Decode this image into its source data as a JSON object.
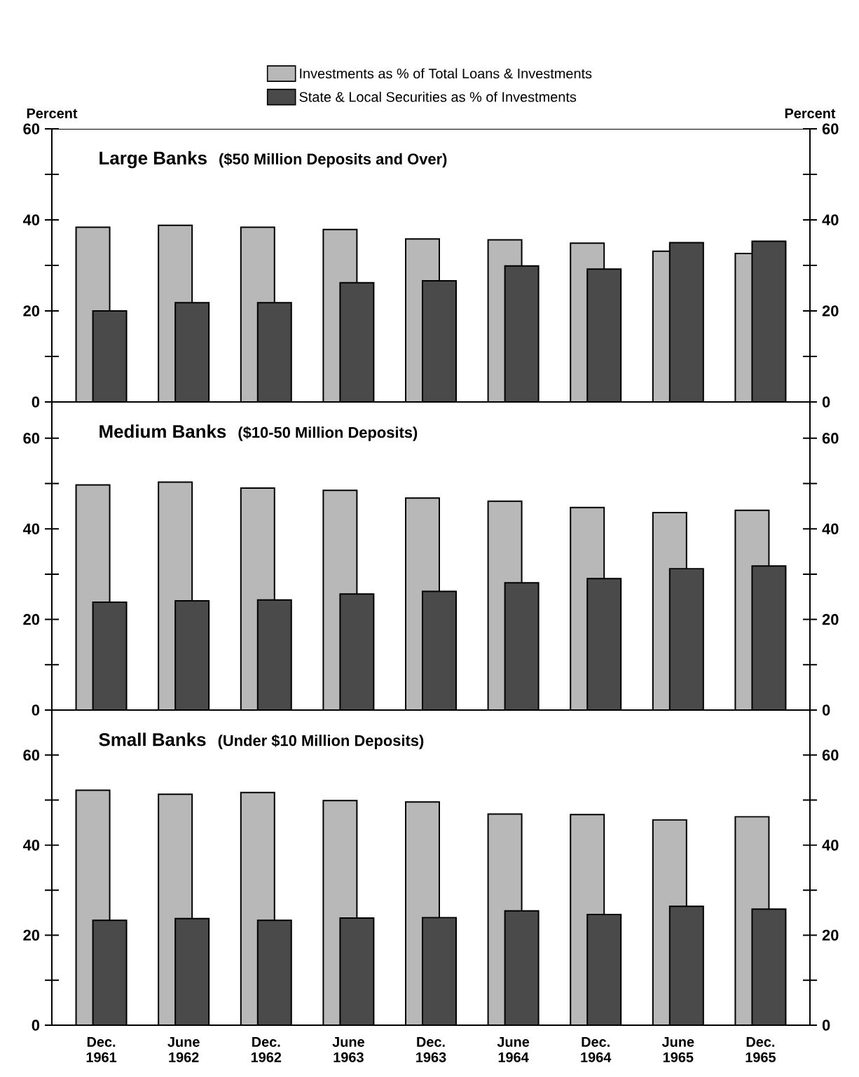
{
  "chart_data": [
    {
      "type": "bar",
      "title": "Large Banks",
      "subtitle": "($50 Million Deposits and Over)",
      "ylabel": "Percent",
      "y2label": "Percent",
      "categories": [
        null,
        null,
        null,
        null,
        null,
        null,
        null,
        null,
        null
      ],
      "series": [
        {
          "name": "Investments as % of Total Loans & Investments",
          "color": "#b8b8b8",
          "values": [
            38.4,
            38.8,
            38.4,
            37.9,
            35.8,
            35.6,
            34.9,
            33.1,
            32.6
          ]
        },
        {
          "name": "State & Local Securities as % of Investments",
          "color": "#4a4a4a",
          "values": [
            20.0,
            21.8,
            21.8,
            26.2,
            26.6,
            29.9,
            29.2,
            35.0,
            35.3
          ]
        }
      ],
      "ylim": [
        0,
        60
      ],
      "yticks": [
        0,
        {
          "value": 10,
          "label": null
        },
        20,
        {
          "value": 30,
          "label": null
        },
        40,
        {
          "value": 50,
          "label": null
        },
        60
      ],
      "y2lim": [
        0,
        60
      ],
      "y2ticks": [
        0,
        {
          "value": 10,
          "label": null
        },
        20,
        {
          "value": 30,
          "label": null
        },
        40,
        {
          "value": 50,
          "label": null
        },
        60
      ],
      "legend": "top",
      "tick_labels": "y"
    },
    {
      "type": "bar",
      "title": "Medium Banks",
      "subtitle": "($10-50 Million Deposits)",
      "categories": [
        null,
        null,
        null,
        null,
        null,
        null,
        null,
        null,
        null
      ],
      "series": [
        {
          "color": "#b8b8b8",
          "values": [
            49.7,
            50.3,
            49.0,
            48.5,
            46.8,
            46.1,
            44.7,
            43.6,
            44.1
          ]
        },
        {
          "color": "#4a4a4a",
          "values": [
            23.8,
            24.1,
            24.3,
            25.6,
            26.2,
            28.1,
            29.0,
            31.2,
            31.8
          ]
        }
      ],
      "ylim": [
        0,
        68
      ],
      "yticks": [
        0,
        {
          "value": 10,
          "label": null
        },
        20,
        {
          "value": 30,
          "label": null
        },
        40,
        {
          "value": 50,
          "label": null
        },
        60
      ],
      "y2lim": [
        0,
        68
      ],
      "y2ticks": [
        0,
        {
          "value": 10,
          "label": null
        },
        20,
        {
          "value": 30,
          "label": null
        },
        40,
        {
          "value": 50,
          "label": null
        },
        60
      ],
      "tick_labels": "y"
    },
    {
      "type": "bar",
      "title": "Small Banks",
      "subtitle": "(Under $10 Million Deposits)",
      "categories": [
        "Dec. 1961",
        "June 1962",
        "Dec. 1962",
        "June 1963",
        "Dec. 1963",
        "June 1964",
        "Dec. 1964",
        "June 1965",
        "Dec. 1965"
      ],
      "series": [
        {
          "color": "#b8b8b8",
          "values": [
            52.2,
            51.3,
            51.7,
            49.9,
            49.6,
            46.9,
            46.8,
            45.6,
            46.3
          ]
        },
        {
          "color": "#4a4a4a",
          "values": [
            23.3,
            23.7,
            23.3,
            23.8,
            23.9,
            25.4,
            24.6,
            26.4,
            25.8
          ]
        }
      ],
      "ylim": [
        0,
        70
      ],
      "yticks": [
        0,
        {
          "value": 10,
          "label": null
        },
        20,
        {
          "value": 30,
          "label": null
        },
        40,
        {
          "value": 50,
          "label": null
        },
        60
      ],
      "y2lim": [
        0,
        70
      ],
      "y2ticks": [
        0,
        {
          "value": 10,
          "label": null
        },
        20,
        {
          "value": 30,
          "label": null
        },
        40,
        {
          "value": 50,
          "label": null
        },
        60
      ]
    }
  ]
}
